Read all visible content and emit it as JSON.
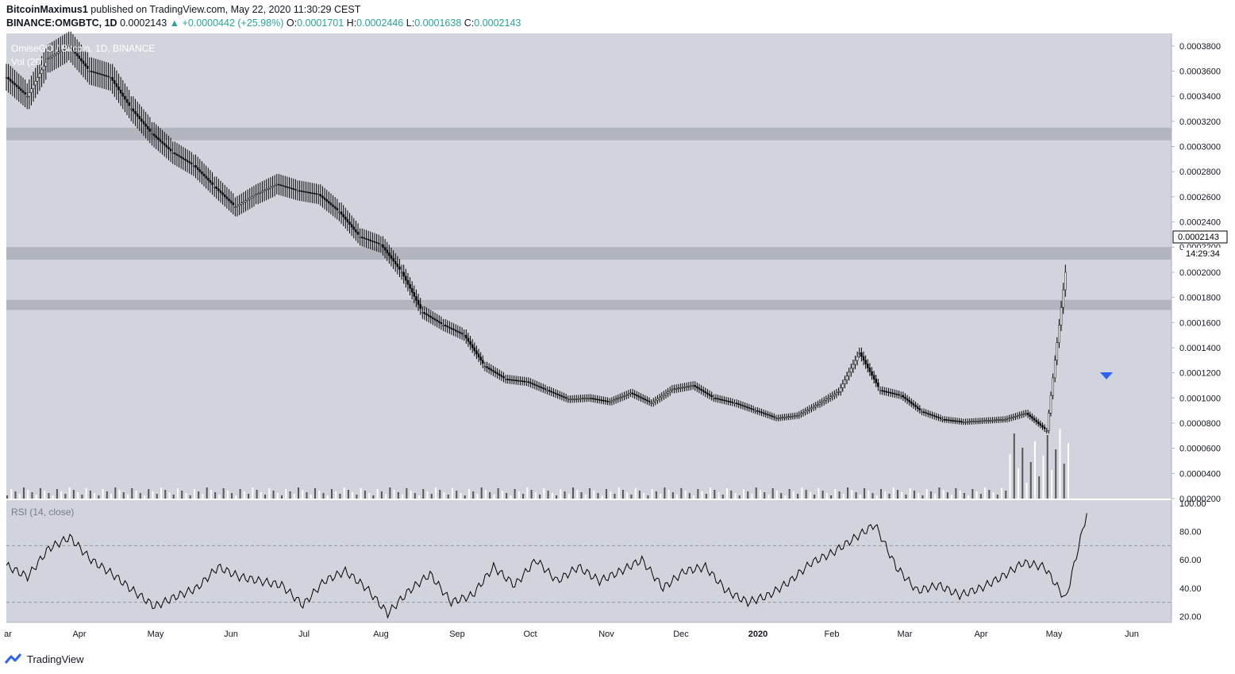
{
  "header": {
    "author": "BitcoinMaximus1",
    "published": "published on TradingView.com, May 22, 2020 11:30:29 CEST",
    "symbol_line": "BINANCE:OMGBTC, 1D",
    "last": "0.0002143",
    "change": "+0.0000442 (+25.98%)",
    "o_label": "O:",
    "o": "0.0001701",
    "h_label": "H:",
    "h": "0.0002446",
    "l_label": "L:",
    "l": "0.0001638",
    "c_label": "C:",
    "c": "0.0002143"
  },
  "legend": {
    "pair": "OmiseGO / Bitcoin, 1D, BINANCE",
    "volume": "Vol (20)",
    "rsi": "RSI (14, close)"
  },
  "price_label": "0.0002143",
  "countdown": "14:29:34",
  "footer": {
    "brand": "TradingView"
  },
  "colors": {
    "bg": "#d1d4dc",
    "zone": "#b2b5be",
    "arrow": "#2962ff"
  },
  "chart_data": [
    {
      "type": "line",
      "title": "",
      "series": [
        {
          "values_note_free": true,
          "x": [
            0,
            10,
            20,
            30,
            40,
            50,
            60,
            70,
            80,
            90,
            100,
            110,
            120,
            130,
            140,
            150,
            160,
            170,
            180,
            190,
            200,
            210,
            220,
            230,
            240,
            250,
            260,
            270,
            280,
            290,
            300,
            310,
            320,
            330,
            340,
            350,
            360,
            370,
            380,
            390,
            400,
            410,
            420,
            430,
            440,
            450
          ],
          "y": [
            0.000355,
            0.00034,
            0.00037,
            0.00038,
            0.00036,
            0.000355,
            0.00033,
            0.00031,
            0.000295,
            0.000285,
            0.000268,
            0.000252,
            0.000262,
            0.00027,
            0.000265,
            0.000262,
            0.000248,
            0.000228,
            0.000222,
            0.0002,
            0.000168,
            0.000158,
            0.00015,
            0.000125,
            0.000115,
            0.000113,
            0.000106,
            9.9e-05,
            0.0001,
            9.7e-05,
            0.000104,
            9.6e-05,
            0.000107,
            0.00011,
            0.0001,
            9.6e-05,
            9e-05,
            8.4e-05,
            8.6e-05,
            9.5e-05,
            0.000105,
            0.000136,
            0.000106,
            0.000102,
            8.9e-05,
            8.3e-05
          ]
        }
      ],
      "extra": {
        "x_tail": [
          460,
          470,
          480,
          490,
          500,
          510
        ],
        "y_tail": [
          8.1e-05,
          8.2e-05,
          8.3e-05,
          8.8e-05,
          7.4e-05,
          0.000214
        ]
      },
      "resistance_zones": [
        [
          0.000305,
          0.000315
        ],
        [
          0.00021,
          0.00022
        ],
        [
          0.00017,
          0.000178
        ]
      ],
      "ylim": [
        2e-05,
        0.00039
      ],
      "y_ticks": [
        "0.0000200",
        "0.0000400",
        "0.0000600",
        "0.0000800",
        "0.0001000",
        "0.0001200",
        "0.0001400",
        "0.0001600",
        "0.0001800",
        "0.0002000",
        "0.0002200",
        "0.0002400",
        "0.0002600",
        "0.0002800",
        "0.0003000",
        "0.0003200",
        "0.0003400",
        "0.0003600",
        "0.0003800"
      ],
      "y_tick_values": [
        2e-05,
        4e-05,
        6e-05,
        8e-05,
        0.0001,
        0.00012,
        0.00014,
        0.00016,
        0.00018,
        0.0002,
        0.00022,
        0.00024,
        0.00026,
        0.00028,
        0.0003,
        0.00032,
        0.00034,
        0.00036,
        0.00038
      ],
      "x_ticks": [
        "ar",
        "Apr",
        "May",
        "Jun",
        "Jul",
        "Aug",
        "Sep",
        "Oct",
        "Nov",
        "Dec",
        "2020",
        "Feb",
        "Mar",
        "Apr",
        "May",
        "Jun"
      ]
    },
    {
      "type": "line",
      "title": "RSI (14, close)",
      "x": [
        0,
        10,
        20,
        30,
        40,
        50,
        60,
        70,
        80,
        90,
        100,
        110,
        120,
        130,
        140,
        150,
        160,
        170,
        180,
        190,
        200,
        210,
        220,
        230,
        240,
        250,
        260,
        270,
        280,
        290,
        300,
        310,
        320,
        330,
        340,
        350,
        360,
        370,
        380,
        390,
        400,
        410,
        420,
        430,
        440,
        450,
        460,
        470,
        480,
        490,
        500,
        510
      ],
      "y": [
        56,
        48,
        68,
        76,
        60,
        50,
        38,
        27,
        34,
        40,
        55,
        48,
        45,
        42,
        28,
        45,
        52,
        40,
        22,
        38,
        50,
        30,
        35,
        55,
        42,
        60,
        45,
        55,
        45,
        52,
        60,
        40,
        52,
        55,
        38,
        30,
        35,
        45,
        58,
        65,
        75,
        85,
        55,
        38,
        42,
        35,
        40,
        48,
        58,
        55,
        32,
        93
      ],
      "ylim": [
        18,
        100
      ],
      "y_ticks": [
        "20.00",
        "40.00",
        "60.00",
        "80.00",
        "100.00"
      ],
      "y_tick_values": [
        20,
        40,
        60,
        80,
        100
      ],
      "levels": [
        30,
        70
      ]
    }
  ]
}
